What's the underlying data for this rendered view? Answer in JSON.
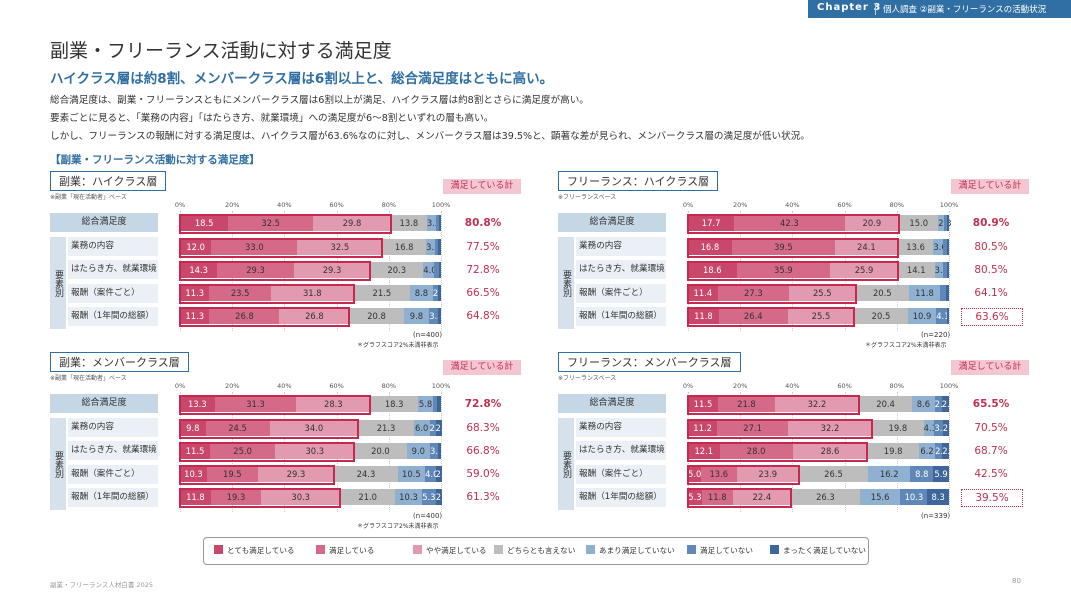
{
  "header": {
    "chapter": "Chapter 3",
    "section": "個人調査 ②副業・フリーランスの活動状況"
  },
  "title": "副業・フリーランス活動に対する満足度",
  "subtitle": "ハイクラス層は約8割、メンバークラス層は6割以上と、総合満足度はともに高い。",
  "body": [
    "総合満足度は、副業・フリーランスともにメンバークラス層は6割以上が満足、ハイクラス層は約8割とさらに満足度が高い。",
    "要素ごとに見ると、「業務の内容」「はたらき方、就業環境」への満足度が6～8割といずれの層も高い。",
    "しかし、フリーランスの報酬に対する満足度は、ハイクラス層が63.6%なのに対し、メンバークラス層は39.5%と、顕著な差が見られ、メンバークラス層の満足度が低い状況。"
  ],
  "section_title": "【副業・フリーランス活動に対する満足度】",
  "satisfied_label": "満足している計",
  "factor_group_label": "要素別",
  "axis_ticks": [
    "0%",
    "20%",
    "40%",
    "60%",
    "80%",
    "100%"
  ],
  "colors": [
    "#c8476a",
    "#d46a87",
    "#e29ab0",
    "#bdbdbd",
    "#90b0d2",
    "#5f88b8",
    "#3f669b"
  ],
  "legend": [
    "とても満足している",
    "満足している",
    "やや満足している",
    "どちらとも言えない",
    "あまり満足していない",
    "満足していない",
    "まったく満足していない"
  ],
  "footer": "副業・フリーランス人材白書 2025",
  "page_number": "80",
  "chart_data": [
    {
      "type": "bar",
      "title": "副業：ハイクラス層",
      "base_note": "※副業「現在活動者」ベース",
      "n_label": "(n=400)",
      "footnote": "＊グラフスコア2%未満非表示",
      "categories": [
        "総合満足度",
        "業務の内容",
        "はたらき方、就業環境",
        "報酬（案件ごと）",
        "報酬（1年間の総額）"
      ],
      "series": [
        {
          "name": "とても満足している",
          "values": [
            18.5,
            12.0,
            14.3,
            11.3,
            11.3
          ]
        },
        {
          "name": "満足している",
          "values": [
            32.5,
            33.0,
            29.3,
            23.5,
            26.8
          ]
        },
        {
          "name": "やや満足している",
          "values": [
            29.8,
            32.5,
            29.3,
            31.8,
            26.8
          ]
        },
        {
          "name": "どちらとも言えない",
          "values": [
            13.8,
            16.8,
            20.3,
            21.5,
            20.8
          ]
        },
        {
          "name": "あまり満足していない",
          "values": [
            3.3,
            3.5,
            4.0,
            8.8,
            9.8
          ]
        },
        {
          "name": "満足していない",
          "values": [
            1.2,
            1.2,
            2.0,
            2.0,
            3.5
          ]
        },
        {
          "name": "まったく満足していない",
          "values": [
            0.9,
            1.0,
            0.8,
            1.1,
            1.0
          ]
        }
      ],
      "labels": [
        [
          "18.5",
          "32.5",
          "29.8",
          "13.8",
          "3.3",
          "",
          ""
        ],
        [
          "12.0",
          "33.0",
          "32.5",
          "16.8",
          "3.5",
          "",
          ""
        ],
        [
          "14.3",
          "29.3",
          "29.3",
          "20.3",
          "4.0",
          "",
          ""
        ],
        [
          "11.3",
          "23.5",
          "31.8",
          "21.5",
          "8.8",
          "2.0",
          ""
        ],
        [
          "11.3",
          "26.8",
          "26.8",
          "20.8",
          "9.8",
          "3.5",
          ""
        ]
      ],
      "totals": [
        "80.8%",
        "77.5%",
        "72.8%",
        "66.5%",
        "64.8%"
      ],
      "highlight_total": "",
      "xlim": [
        0,
        100
      ]
    },
    {
      "type": "bar",
      "title": "フリーランス：ハイクラス層",
      "base_note": "※フリーランスベース",
      "n_label": "(n=220)",
      "footnote": "＊グラフスコア2%未満非表示",
      "categories": [
        "総合満足度",
        "業務の内容",
        "はたらき方、就業環境",
        "報酬（案件ごと）",
        "報酬（1年間の総額）"
      ],
      "series": [
        {
          "name": "とても満足している",
          "values": [
            17.7,
            16.8,
            18.6,
            11.4,
            11.8
          ]
        },
        {
          "name": "満足している",
          "values": [
            42.3,
            39.5,
            35.9,
            27.3,
            26.4
          ]
        },
        {
          "name": "やや満足している",
          "values": [
            20.9,
            24.1,
            25.9,
            25.5,
            25.5
          ]
        },
        {
          "name": "どちらとも言えない",
          "values": [
            15.0,
            13.6,
            14.1,
            20.5,
            20.5
          ]
        },
        {
          "name": "あまり満足していない",
          "values": [
            2.3,
            3.6,
            3.2,
            11.8,
            10.9
          ]
        },
        {
          "name": "満足していない",
          "values": [
            1.0,
            1.5,
            1.5,
            2.5,
            4.1
          ]
        },
        {
          "name": "まったく満足していない",
          "values": [
            0.8,
            0.9,
            0.8,
            1.0,
            0.8
          ]
        }
      ],
      "labels": [
        [
          "17.7",
          "42.3",
          "20.9",
          "15.0",
          "2.3",
          "",
          ""
        ],
        [
          "16.8",
          "39.5",
          "24.1",
          "13.6",
          "3.6",
          "",
          ""
        ],
        [
          "18.6",
          "35.9",
          "25.9",
          "14.1",
          "3.2",
          "",
          ""
        ],
        [
          "11.4",
          "27.3",
          "25.5",
          "20.5",
          "11.8",
          "",
          ""
        ],
        [
          "11.8",
          "26.4",
          "25.5",
          "20.5",
          "10.9",
          "4.1",
          ""
        ]
      ],
      "totals": [
        "80.9%",
        "80.5%",
        "80.5%",
        "64.1%",
        "63.6%"
      ],
      "highlight_total": "63.6%",
      "xlim": [
        0,
        100
      ]
    },
    {
      "type": "bar",
      "title": "副業：メンバークラス層",
      "base_note": "※副業「現在活動者」ベース",
      "n_label": "(n=400)",
      "footnote": "＊グラフスコア2%未満非表示",
      "categories": [
        "総合満足度",
        "業務の内容",
        "はたらき方、就業環境",
        "報酬（案件ごと）",
        "報酬（1年間の総額）"
      ],
      "series": [
        {
          "name": "とても満足している",
          "values": [
            13.3,
            9.8,
            11.5,
            10.3,
            11.8
          ]
        },
        {
          "name": "満足している",
          "values": [
            31.3,
            24.5,
            25.0,
            19.5,
            19.3
          ]
        },
        {
          "name": "やや満足している",
          "values": [
            28.3,
            34.0,
            30.3,
            29.3,
            30.3
          ]
        },
        {
          "name": "どちらとも言えない",
          "values": [
            18.3,
            21.3,
            20.0,
            24.3,
            21.0
          ]
        },
        {
          "name": "あまり満足していない",
          "values": [
            5.8,
            6.0,
            9.0,
            10.5,
            10.3
          ]
        },
        {
          "name": "満足していない",
          "values": [
            1.5,
            2.3,
            3.0,
            4.0,
            5.3
          ]
        },
        {
          "name": "まったく満足していない",
          "values": [
            1.5,
            2.3,
            1.3,
            2.3,
            2.3
          ]
        }
      ],
      "labels": [
        [
          "13.3",
          "31.3",
          "28.3",
          "18.3",
          "5.8",
          "",
          ""
        ],
        [
          "9.8",
          "24.5",
          "34.0",
          "21.3",
          "6.0",
          "2.3",
          "2.3"
        ],
        [
          "11.5",
          "25.0",
          "30.3",
          "20.0",
          "9.0",
          "3.0",
          ""
        ],
        [
          "10.3",
          "19.5",
          "29.3",
          "24.3",
          "10.5",
          "4.0",
          "2.3"
        ],
        [
          "11.8",
          "19.3",
          "30.3",
          "21.0",
          "10.3",
          "5.3",
          "2.3"
        ]
      ],
      "totals": [
        "72.8%",
        "68.3%",
        "66.8%",
        "59.0%",
        "61.3%"
      ],
      "highlight_total": "",
      "xlim": [
        0,
        100
      ]
    },
    {
      "type": "bar",
      "title": "フリーランス：メンバークラス層",
      "base_note": "※フリーランスベース",
      "n_label": "(n=339)",
      "footnote": "",
      "categories": [
        "総合満足度",
        "業務の内容",
        "はたらき方、就業環境",
        "報酬（案件ごと）",
        "報酬（1年間の総額）"
      ],
      "series": [
        {
          "name": "とても満足している",
          "values": [
            11.5,
            11.2,
            12.1,
            5.0,
            5.3
          ]
        },
        {
          "name": "満足している",
          "values": [
            21.8,
            27.1,
            28.0,
            13.6,
            11.8
          ]
        },
        {
          "name": "やや満足している",
          "values": [
            32.2,
            32.2,
            28.6,
            23.9,
            22.4
          ]
        },
        {
          "name": "どちらとも言えない",
          "values": [
            20.4,
            19.8,
            19.8,
            26.5,
            26.3
          ]
        },
        {
          "name": "あまり満足していない",
          "values": [
            8.6,
            4.1,
            6.2,
            16.2,
            15.6
          ]
        },
        {
          "name": "満足していない",
          "values": [
            2.7,
            3.2,
            2.7,
            8.8,
            10.3
          ]
        },
        {
          "name": "まったく満足していない",
          "values": [
            2.9,
            2.4,
            2.7,
            5.9,
            8.3
          ]
        }
      ],
      "labels": [
        [
          "11.5",
          "21.8",
          "32.2",
          "20.4",
          "8.6",
          "2.7",
          "2.9"
        ],
        [
          "11.2",
          "27.1",
          "32.2",
          "19.8",
          "4.1",
          "3.2",
          "2.4"
        ],
        [
          "12.1",
          "28.0",
          "28.6",
          "19.8",
          "6.2",
          "2.7",
          "2.7"
        ],
        [
          "5.0",
          "13.6",
          "23.9",
          "26.5",
          "16.2",
          "8.8",
          "5.9"
        ],
        [
          "5.3",
          "11.8",
          "22.4",
          "26.3",
          "15.6",
          "10.3",
          "8.3"
        ]
      ],
      "totals": [
        "65.5%",
        "70.5%",
        "68.7%",
        "42.5%",
        "39.5%"
      ],
      "highlight_total": "39.5%",
      "xlim": [
        0,
        100
      ]
    }
  ]
}
